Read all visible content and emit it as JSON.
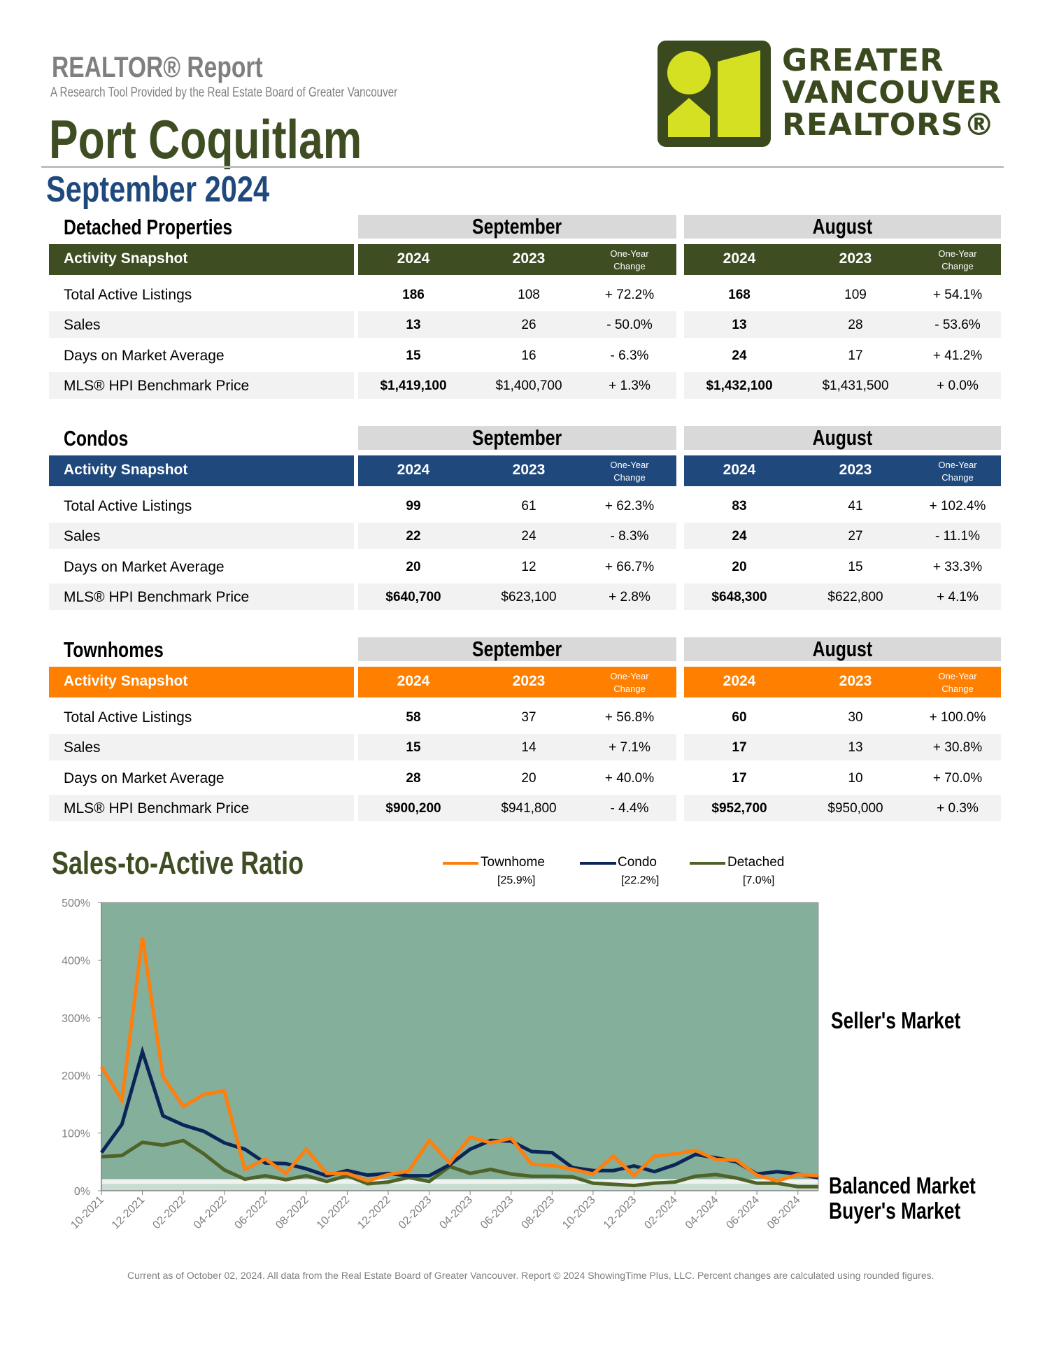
{
  "header": {
    "report_title": "REALTOR® Report",
    "subtitle": "A Research Tool Provided by the Real Estate Board of Greater Vancouver",
    "area": "Port Coquitlam",
    "period": "September 2024",
    "logo_text": [
      "GREATER",
      "VANCOUVER",
      "REALTORS®"
    ],
    "logo_colors": {
      "dark": "#3b4a1e",
      "lime": "#d4e021"
    }
  },
  "table_labels": {
    "group_current": "September",
    "group_prior": "August",
    "snapshot": "Activity Snapshot",
    "year_current": "2024",
    "year_prior": "2023",
    "change_line1": "One-Year",
    "change_line2": "Change",
    "rows": [
      "Total Active Listings",
      "Sales",
      "Days on Market Average",
      "MLS® HPI Benchmark Price"
    ]
  },
  "sections": [
    {
      "title": "Detached Properties",
      "color": "#3e4d22",
      "rows": [
        [
          "186",
          "108",
          "+ 72.2%",
          "168",
          "109",
          "+ 54.1%"
        ],
        [
          "13",
          "26",
          "- 50.0%",
          "13",
          "28",
          "- 53.6%"
        ],
        [
          "15",
          "16",
          "- 6.3%",
          "24",
          "17",
          "+ 41.2%"
        ],
        [
          "$1,419,100",
          "$1,400,700",
          "+ 1.3%",
          "$1,432,100",
          "$1,431,500",
          "+ 0.0%"
        ]
      ]
    },
    {
      "title": "Condos",
      "color": "#1f487c",
      "rows": [
        [
          "99",
          "61",
          "+ 62.3%",
          "83",
          "41",
          "+ 102.4%"
        ],
        [
          "22",
          "24",
          "- 8.3%",
          "24",
          "27",
          "- 11.1%"
        ],
        [
          "20",
          "12",
          "+ 66.7%",
          "20",
          "15",
          "+ 33.3%"
        ],
        [
          "$640,700",
          "$623,100",
          "+ 2.8%",
          "$648,300",
          "$622,800",
          "+ 4.1%"
        ]
      ]
    },
    {
      "title": "Townhomes",
      "color": "#ff7f00",
      "rows": [
        [
          "58",
          "37",
          "+ 56.8%",
          "60",
          "30",
          "+ 100.0%"
        ],
        [
          "15",
          "14",
          "+ 7.1%",
          "17",
          "13",
          "+ 30.8%"
        ],
        [
          "28",
          "20",
          "+ 40.0%",
          "17",
          "10",
          "+ 70.0%"
        ],
        [
          "$900,200",
          "$941,800",
          "- 4.4%",
          "$952,700",
          "$950,000",
          "+ 0.3%"
        ]
      ]
    }
  ],
  "chart_data": {
    "type": "line",
    "title": "Sales-to-Active Ratio",
    "categories": [
      "10-2021",
      "11-2021",
      "12-2021",
      "01-2022",
      "02-2022",
      "03-2022",
      "04-2022",
      "05-2022",
      "06-2022",
      "07-2022",
      "08-2022",
      "09-2022",
      "10-2022",
      "11-2022",
      "12-2022",
      "01-2023",
      "02-2023",
      "03-2023",
      "04-2023",
      "05-2023",
      "06-2023",
      "07-2023",
      "08-2023",
      "09-2023",
      "10-2023",
      "11-2023",
      "12-2023",
      "01-2024",
      "02-2024",
      "03-2024",
      "04-2024",
      "05-2024",
      "06-2024",
      "07-2024",
      "08-2024",
      "09-2024"
    ],
    "x_tick_labels": [
      "10-2021",
      "12-2021",
      "02-2022",
      "04-2022",
      "06-2022",
      "08-2022",
      "10-2022",
      "12-2022",
      "02-2023",
      "04-2023",
      "06-2023",
      "08-2023",
      "10-2023",
      "12-2023",
      "02-2024",
      "04-2024",
      "06-2024",
      "08-2024"
    ],
    "y_ticks": [
      "0%",
      "100%",
      "200%",
      "300%",
      "400%",
      "500%"
    ],
    "ylim": [
      0,
      500
    ],
    "legend_placement": "top",
    "series": [
      {
        "name": "Townhome",
        "current": "[25.9%]",
        "color": "#ff7f0e",
        "values": [
          215,
          157,
          440,
          198,
          146,
          167,
          173,
          37,
          55,
          30,
          72,
          30,
          30,
          17,
          28,
          34,
          87,
          48,
          93,
          83,
          91,
          46,
          44,
          37,
          29,
          60,
          26,
          60,
          64,
          70,
          54,
          53,
          27,
          17,
          28,
          25.9
        ]
      },
      {
        "name": "Condo",
        "current": "[22.2%]",
        "color": "#0b2559",
        "values": [
          66,
          115,
          241,
          130,
          114,
          103,
          83,
          72,
          48,
          47,
          38,
          26,
          35,
          27,
          30,
          26,
          26,
          45,
          72,
          87,
          86,
          68,
          66,
          40,
          35,
          35,
          43,
          33,
          45,
          63,
          57,
          50,
          29,
          33,
          29,
          22.2
        ]
      },
      {
        "name": "Detached",
        "current": "[7.0%]",
        "color": "#4f6228",
        "values": [
          59,
          61,
          84,
          79,
          87,
          64,
          36,
          20,
          26,
          19,
          26,
          16,
          26,
          12,
          15,
          23,
          16,
          42,
          30,
          37,
          29,
          25,
          25,
          24,
          13,
          11,
          9,
          13,
          15,
          25,
          28,
          22,
          13,
          13,
          7,
          7.0
        ]
      }
    ],
    "zones": [
      {
        "label": "Seller's Market",
        "from": 20,
        "to": 500,
        "color": "#84af9a"
      },
      {
        "label": "Balanced Market",
        "from": 12,
        "to": 20,
        "color": "#f0f2f0"
      },
      {
        "label": "Buyer's Market",
        "from": 0,
        "to": 12,
        "color": "#c8ddd2"
      }
    ]
  },
  "footer": "Current as of October 02, 2024. All data from the Real Estate Board of Greater Vancouver.  Report © 2024 ShowingTime Plus, LLC. Percent changes are calculated using rounded figures."
}
